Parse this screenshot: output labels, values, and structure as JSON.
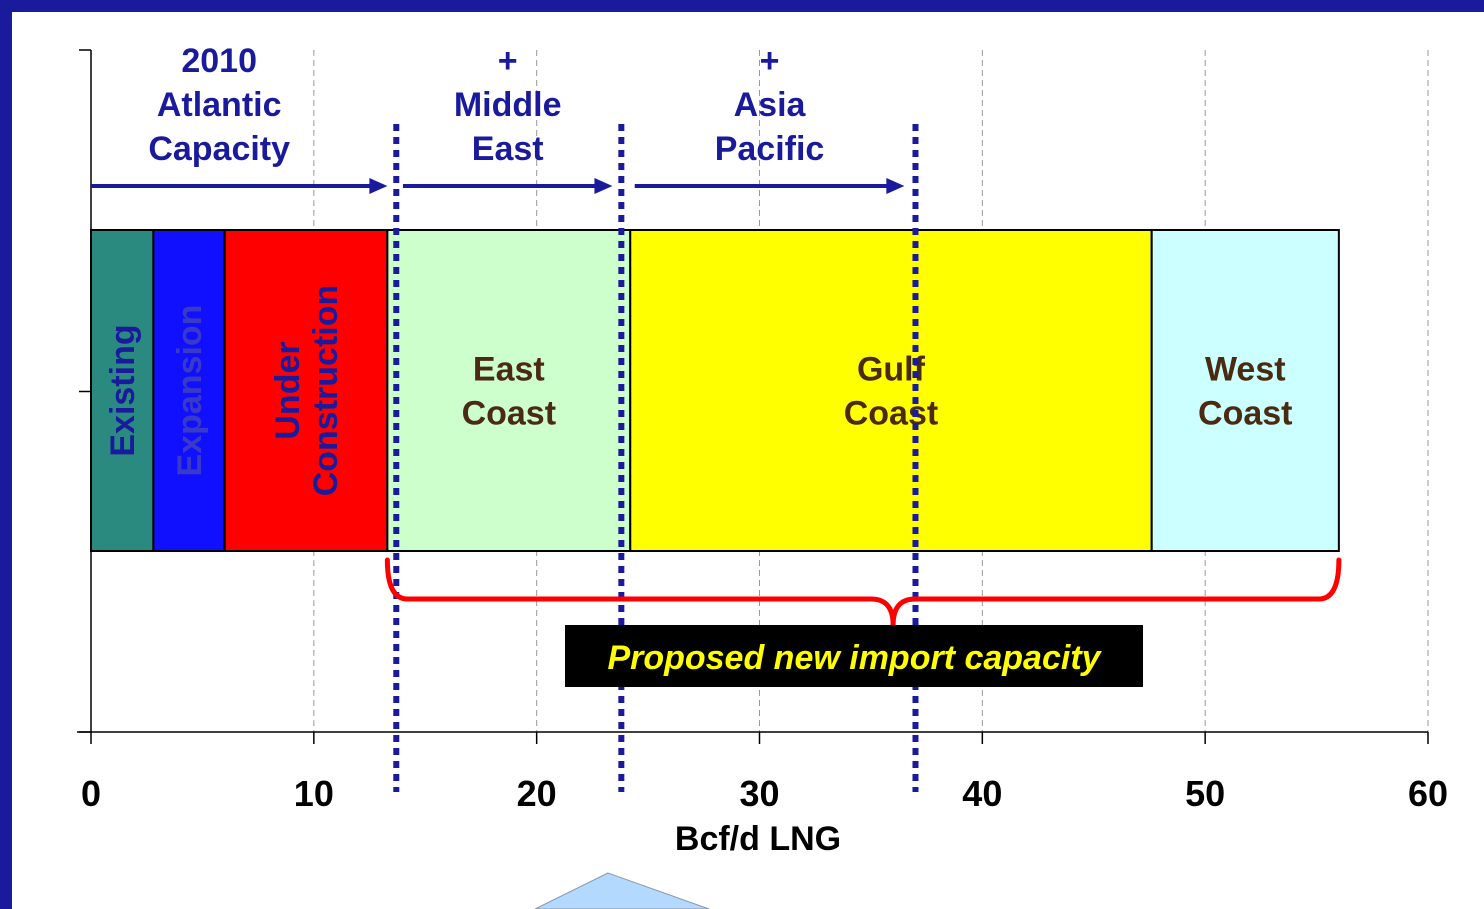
{
  "chart_data": {
    "type": "bar",
    "orientation": "horizontal-stacked",
    "xlabel": "Bcf/d LNG",
    "xlim": [
      0,
      60
    ],
    "xticks": [
      "0",
      "10",
      "20",
      "30",
      "40",
      "50",
      "60"
    ],
    "grid": true,
    "segments": [
      {
        "name": "Existing",
        "start": 0,
        "end": 2.8,
        "color": "#2a8a80",
        "label_color": "#1a1a9c",
        "vertical": true
      },
      {
        "name": "Expansion",
        "start": 2.8,
        "end": 6.0,
        "color": "#1010ff",
        "label_color": "#3a3ac8",
        "vertical": true
      },
      {
        "name": "Under Construction",
        "start": 6.0,
        "end": 13.3,
        "color": "#ff0000",
        "label_color": "#1a1a9c",
        "vertical": true
      },
      {
        "name": "East Coast",
        "start": 13.3,
        "end": 24.2,
        "color": "#ccffcc",
        "label_color": "#4a2a10",
        "vertical": false
      },
      {
        "name": "Gulf Coast",
        "start": 24.2,
        "end": 47.6,
        "color": "#ffff00",
        "label_color": "#4a2a10",
        "vertical": false
      },
      {
        "name": "West Coast",
        "start": 47.6,
        "end": 56.0,
        "color": "#ccffff",
        "label_color": "#4a2a10",
        "vertical": false
      }
    ],
    "markers": [
      13.7,
      23.8,
      37.0
    ],
    "arrows": [
      {
        "from": 0,
        "to": 13.3,
        "label": [
          "2010",
          "Atlantic",
          "Capacity"
        ]
      },
      {
        "from": 14.0,
        "to": 23.4,
        "label": [
          "+",
          "Middle",
          "East"
        ]
      },
      {
        "from": 24.4,
        "to": 36.5,
        "label": [
          "+",
          "Asia",
          "Pacific"
        ]
      }
    ],
    "brace": {
      "from": 13.3,
      "to": 56.0,
      "label": "Proposed new import capacity"
    }
  },
  "colors": {
    "frame": "#1a1a9c",
    "arrow": "#1a1a9c",
    "marker": "#1a1a9c",
    "brace": "#ff0000",
    "callout_bg": "#000000",
    "callout_text": "#ffff00",
    "pointer": "#b3d9ff"
  }
}
